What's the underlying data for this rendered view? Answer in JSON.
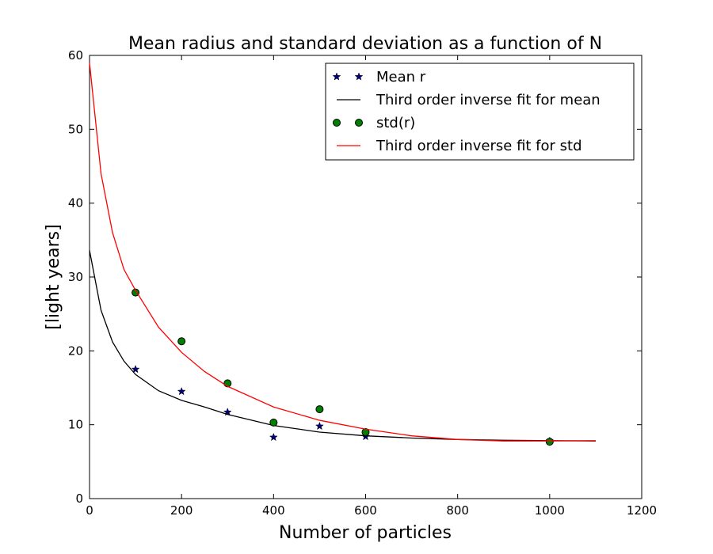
{
  "chart_data": {
    "type": "scatter",
    "title": "Mean radius and standard deviation as a function of N",
    "xlabel": "Number of particles",
    "ylabel": "[light years]",
    "xlim": [
      0,
      1200
    ],
    "ylim": [
      0,
      60
    ],
    "xticks": [
      "0",
      "200",
      "400",
      "600",
      "800",
      "1000",
      "1200"
    ],
    "yticks": [
      "0",
      "10",
      "20",
      "30",
      "40",
      "50",
      "60"
    ],
    "grid": false,
    "legend_position": "top-right",
    "series": [
      {
        "name": "Mean r",
        "kind": "markers",
        "marker": "star",
        "color": "#000080",
        "x": [
          100,
          200,
          300,
          400,
          500,
          600,
          1000
        ],
        "y": [
          17.5,
          14.5,
          11.7,
          8.3,
          9.8,
          8.4,
          7.8
        ]
      },
      {
        "name": "Third order inverse fit for mean",
        "kind": "line",
        "color": "#000000",
        "x": [
          0,
          25,
          50,
          75,
          100,
          150,
          200,
          250,
          300,
          400,
          500,
          600,
          700,
          800,
          900,
          1000,
          1100
        ],
        "y": [
          33.6,
          25.5,
          21.2,
          18.6,
          16.8,
          14.6,
          13.3,
          12.4,
          11.4,
          9.9,
          9.0,
          8.5,
          8.2,
          8.0,
          7.9,
          7.85,
          7.8
        ]
      },
      {
        "name": "std(r)",
        "kind": "markers",
        "marker": "circle",
        "color": "#008000",
        "x": [
          100,
          200,
          300,
          400,
          500,
          600,
          1000
        ],
        "y": [
          27.9,
          21.3,
          15.6,
          10.3,
          12.1,
          9.0,
          7.7
        ]
      },
      {
        "name": "Third order inverse fit for std",
        "kind": "line",
        "color": "#ff0000",
        "x": [
          0,
          25,
          50,
          75,
          100,
          150,
          200,
          250,
          300,
          400,
          500,
          600,
          700,
          800,
          900,
          1000,
          1100
        ],
        "y": [
          59.0,
          44.0,
          36.0,
          31.0,
          28.2,
          23.2,
          19.8,
          17.2,
          15.2,
          12.4,
          10.6,
          9.4,
          8.5,
          8.0,
          7.8,
          7.8,
          7.85
        ]
      }
    ]
  }
}
